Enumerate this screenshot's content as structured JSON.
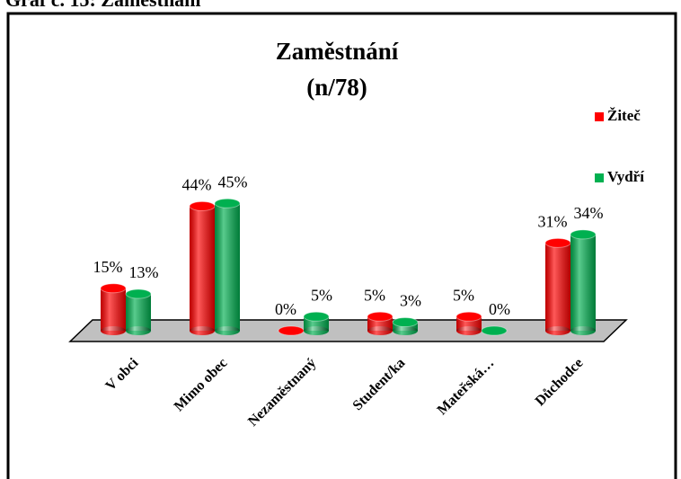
{
  "caption": "Graf č. 15: Zaměstnání",
  "chart_data": {
    "type": "bar",
    "title": "Zaměstnání",
    "subtitle": "(n/78)",
    "categories": [
      "V obci",
      "Mimo obec",
      "Nezaměstnaný",
      "Student/ka",
      "Mateřská…",
      "Důchodce"
    ],
    "series": [
      {
        "name": "Žiteč",
        "color": "#ff0000",
        "values": [
          15,
          44,
          0,
          5,
          5,
          31
        ],
        "value_labels": [
          "15%",
          "44%",
          "0%",
          "5%",
          "5%",
          "31%"
        ]
      },
      {
        "name": "Vydří",
        "color": "#00b050",
        "values": [
          13,
          45,
          5,
          3,
          0,
          34
        ],
        "value_labels": [
          "13%",
          "45%",
          "5%",
          "3%",
          "0%",
          "34%"
        ]
      }
    ],
    "legend": "right"
  }
}
